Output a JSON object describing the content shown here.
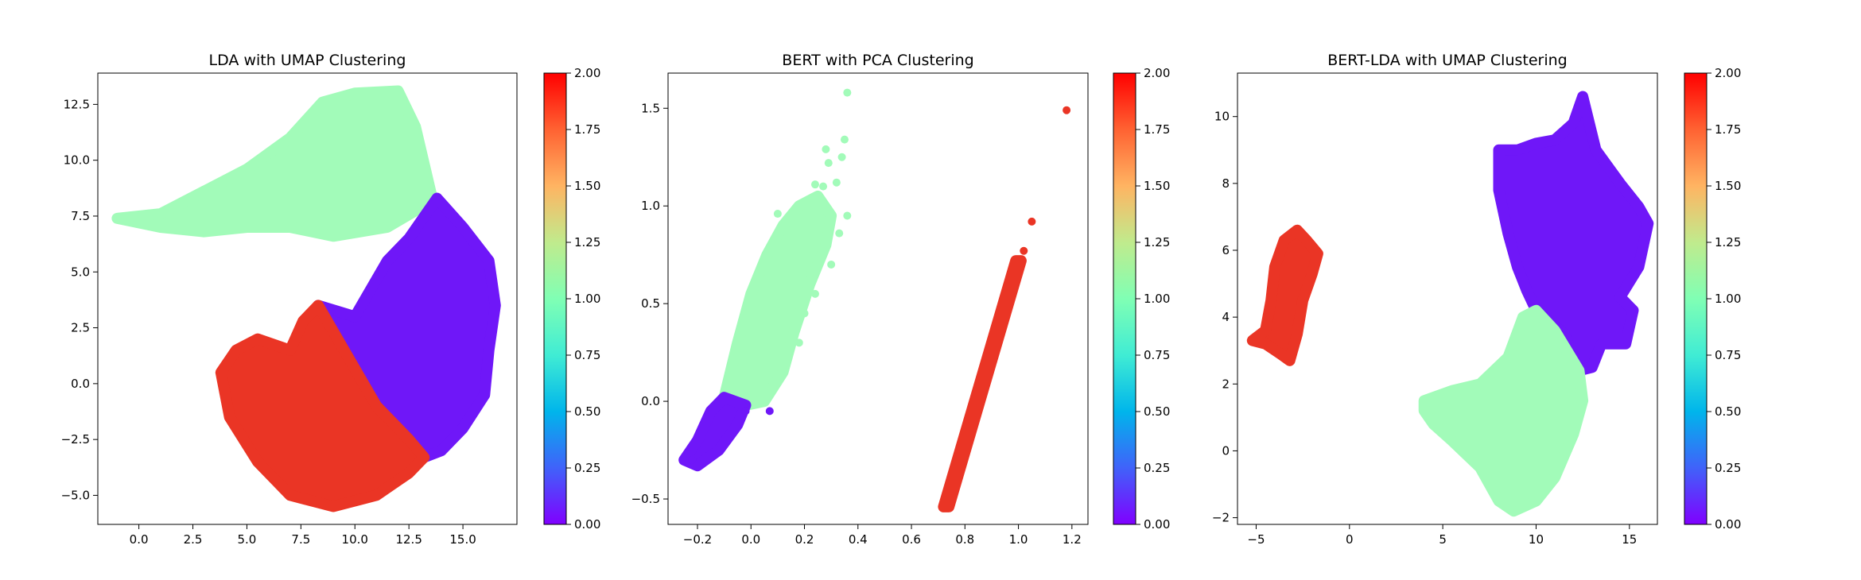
{
  "chart_data": [
    {
      "type": "scatter",
      "title": "LDA with UMAP Clustering",
      "xlabel": "",
      "ylabel": "",
      "xlim": [
        -1.9,
        17.5
      ],
      "ylim": [
        -6.3,
        13.9
      ],
      "xticks": [
        0.0,
        2.5,
        5.0,
        7.5,
        10.0,
        12.5,
        15.0
      ],
      "xtick_labels": [
        "0.0",
        "2.5",
        "5.0",
        "7.5",
        "10.0",
        "12.5",
        "15.0"
      ],
      "yticks": [
        -5.0,
        -2.5,
        0.0,
        2.5,
        5.0,
        7.5,
        10.0,
        12.5
      ],
      "ytick_labels": [
        "−5.0",
        "−2.5",
        "0.0",
        "2.5",
        "5.0",
        "7.5",
        "10.0",
        "12.5"
      ],
      "clusters": [
        {
          "cluster": 1,
          "color": "#a2fbb9",
          "region": [
            [
              -1.0,
              7.4
            ],
            [
              1.0,
              7.6
            ],
            [
              3.0,
              8.6
            ],
            [
              5.0,
              9.6
            ],
            [
              7.0,
              11.0
            ],
            [
              8.5,
              12.6
            ],
            [
              10.0,
              13.0
            ],
            [
              12.0,
              13.1
            ],
            [
              12.8,
              11.5
            ],
            [
              13.6,
              8.2
            ],
            [
              11.5,
              7.0
            ],
            [
              9.0,
              6.6
            ],
            [
              7.0,
              7.0
            ],
            [
              5.0,
              7.0
            ],
            [
              3.0,
              6.8
            ],
            [
              1.0,
              7.0
            ]
          ]
        },
        {
          "cluster": 0,
          "color": "#6f17f8",
          "region": [
            [
              8.3,
              3.5
            ],
            [
              10.0,
              3.0
            ],
            [
              11.5,
              5.5
            ],
            [
              12.5,
              6.5
            ],
            [
              13.8,
              8.3
            ],
            [
              15.0,
              7.0
            ],
            [
              16.2,
              5.5
            ],
            [
              16.5,
              3.5
            ],
            [
              16.2,
              1.5
            ],
            [
              16.0,
              -0.5
            ],
            [
              15.0,
              -2.0
            ],
            [
              14.0,
              -3.0
            ],
            [
              13.2,
              -3.3
            ],
            [
              12.5,
              -2.5
            ],
            [
              11.0,
              -1.0
            ],
            [
              9.5,
              1.5
            ]
          ]
        },
        {
          "cluster": 2,
          "color": "#ea3525",
          "region": [
            [
              8.3,
              3.5
            ],
            [
              7.6,
              2.8
            ],
            [
              7.0,
              1.5
            ],
            [
              5.5,
              2.0
            ],
            [
              4.5,
              1.5
            ],
            [
              3.8,
              0.5
            ],
            [
              4.2,
              -1.5
            ],
            [
              5.5,
              -3.5
            ],
            [
              7.0,
              -5.0
            ],
            [
              9.0,
              -5.5
            ],
            [
              11.0,
              -5.0
            ],
            [
              12.5,
              -4.0
            ],
            [
              13.2,
              -3.3
            ],
            [
              12.5,
              -2.5
            ],
            [
              11.0,
              -1.0
            ],
            [
              9.5,
              1.5
            ]
          ]
        }
      ],
      "colorbar": {
        "min": 0.0,
        "max": 2.0,
        "ticks": [
          "0.00",
          "0.25",
          "0.50",
          "0.75",
          "1.00",
          "1.25",
          "1.50",
          "1.75",
          "2.00"
        ]
      }
    },
    {
      "type": "scatter",
      "title": "BERT with PCA Clustering",
      "xlabel": "",
      "ylabel": "",
      "xlim": [
        -0.31,
        1.26
      ],
      "ylim": [
        -0.63,
        1.68
      ],
      "xticks": [
        -0.2,
        0.0,
        0.2,
        0.4,
        0.6,
        0.8,
        1.0,
        1.2
      ],
      "xtick_labels": [
        "−0.2",
        "0.0",
        "0.2",
        "0.4",
        "0.6",
        "0.8",
        "1.0",
        "1.2"
      ],
      "yticks": [
        -0.5,
        0.0,
        0.5,
        1.0,
        1.5
      ],
      "ytick_labels": [
        "−0.5",
        "0.0",
        "0.5",
        "1.0",
        "1.5"
      ],
      "clusters": [
        {
          "cluster": 1,
          "color": "#a2fbb9",
          "region": [
            [
              -0.1,
              0.02
            ],
            [
              -0.05,
              0.3
            ],
            [
              0.0,
              0.55
            ],
            [
              0.06,
              0.75
            ],
            [
              0.12,
              0.9
            ],
            [
              0.18,
              1.0
            ],
            [
              0.25,
              1.05
            ],
            [
              0.3,
              0.95
            ],
            [
              0.28,
              0.8
            ],
            [
              0.22,
              0.6
            ],
            [
              0.16,
              0.35
            ],
            [
              0.12,
              0.15
            ],
            [
              0.05,
              0.0
            ],
            [
              -0.02,
              -0.02
            ]
          ]
        },
        {
          "cluster": 0,
          "color": "#6f17f8",
          "region": [
            [
              -0.25,
              -0.3
            ],
            [
              -0.2,
              -0.2
            ],
            [
              -0.15,
              -0.05
            ],
            [
              -0.1,
              0.02
            ],
            [
              -0.02,
              -0.02
            ],
            [
              -0.05,
              -0.12
            ],
            [
              -0.12,
              -0.25
            ],
            [
              -0.2,
              -0.33
            ]
          ]
        },
        {
          "cluster": 2,
          "color": "#ea3525",
          "region": [
            [
              0.72,
              -0.54
            ],
            [
              0.74,
              -0.54
            ],
            [
              1.01,
              0.72
            ],
            [
              0.99,
              0.72
            ]
          ]
        }
      ],
      "points": [
        {
          "cluster": 1,
          "x": 0.36,
          "y": 1.58
        },
        {
          "cluster": 1,
          "x": 0.35,
          "y": 1.34
        },
        {
          "cluster": 1,
          "x": 0.34,
          "y": 1.25
        },
        {
          "cluster": 1,
          "x": 0.28,
          "y": 1.29
        },
        {
          "cluster": 1,
          "x": 0.29,
          "y": 1.22
        },
        {
          "cluster": 1,
          "x": 0.32,
          "y": 1.12
        },
        {
          "cluster": 1,
          "x": 0.24,
          "y": 1.11
        },
        {
          "cluster": 1,
          "x": 0.27,
          "y": 1.1
        },
        {
          "cluster": 1,
          "x": 0.33,
          "y": 0.86
        },
        {
          "cluster": 1,
          "x": 0.36,
          "y": 0.95
        },
        {
          "cluster": 1,
          "x": 0.1,
          "y": 0.96
        },
        {
          "cluster": 1,
          "x": 0.3,
          "y": 0.7
        },
        {
          "cluster": 1,
          "x": 0.22,
          "y": 0.65
        },
        {
          "cluster": 1,
          "x": 0.24,
          "y": 0.55
        },
        {
          "cluster": 1,
          "x": 0.2,
          "y": 0.45
        },
        {
          "cluster": 1,
          "x": 0.18,
          "y": 0.3
        },
        {
          "cluster": 1,
          "x": 0.14,
          "y": 0.22
        },
        {
          "cluster": 1,
          "x": 0.08,
          "y": 0.1
        },
        {
          "cluster": 0,
          "x": 0.07,
          "y": -0.05
        },
        {
          "cluster": 0,
          "x": -0.02,
          "y": -0.05
        },
        {
          "cluster": 0,
          "x": -0.22,
          "y": -0.3
        },
        {
          "cluster": 2,
          "x": 1.18,
          "y": 1.49
        },
        {
          "cluster": 2,
          "x": 1.05,
          "y": 0.92
        },
        {
          "cluster": 2,
          "x": 1.02,
          "y": 0.77
        }
      ],
      "colorbar": {
        "min": 0.0,
        "max": 2.0,
        "ticks": [
          "0.00",
          "0.25",
          "0.50",
          "0.75",
          "1.00",
          "1.25",
          "1.50",
          "1.75",
          "2.00"
        ]
      }
    },
    {
      "type": "scatter",
      "title": "BERT-LDA with UMAP Clustering",
      "xlabel": "",
      "ylabel": "",
      "xlim": [
        -6.0,
        16.5
      ],
      "ylim": [
        -2.2,
        11.3
      ],
      "xticks": [
        -5,
        0,
        5,
        10,
        15
      ],
      "xtick_labels": [
        "−5",
        "0",
        "5",
        "10",
        "15"
      ],
      "yticks": [
        -2,
        0,
        2,
        4,
        6,
        8,
        10
      ],
      "ytick_labels": [
        "−2",
        "0",
        "2",
        "4",
        "6",
        "8",
        "10"
      ],
      "clusters": [
        {
          "cluster": 2,
          "color": "#ea3525",
          "region": [
            [
              -5.2,
              3.3
            ],
            [
              -4.5,
              3.6
            ],
            [
              -4.2,
              4.5
            ],
            [
              -4.0,
              5.5
            ],
            [
              -3.5,
              6.3
            ],
            [
              -2.8,
              6.6
            ],
            [
              -2.3,
              6.3
            ],
            [
              -1.7,
              5.9
            ],
            [
              -2.0,
              5.3
            ],
            [
              -2.5,
              4.5
            ],
            [
              -2.8,
              3.5
            ],
            [
              -3.2,
              2.7
            ],
            [
              -3.7,
              2.9
            ],
            [
              -4.5,
              3.2
            ]
          ]
        },
        {
          "cluster": 0,
          "color": "#6f17f8",
          "region": [
            [
              8.0,
              9.0
            ],
            [
              9.0,
              9.0
            ],
            [
              10.0,
              9.2
            ],
            [
              11.0,
              9.3
            ],
            [
              12.0,
              9.8
            ],
            [
              12.5,
              10.6
            ],
            [
              13.2,
              9.0
            ],
            [
              14.5,
              8.0
            ],
            [
              15.5,
              7.3
            ],
            [
              16.0,
              6.8
            ],
            [
              15.5,
              5.5
            ],
            [
              14.5,
              4.6
            ],
            [
              15.2,
              4.2
            ],
            [
              14.8,
              3.2
            ],
            [
              13.5,
              3.2
            ],
            [
              13.0,
              2.5
            ],
            [
              12.3,
              2.4
            ],
            [
              11.5,
              3.5
            ],
            [
              10.0,
              4.2
            ],
            [
              9.5,
              4.8
            ],
            [
              9.0,
              5.5
            ],
            [
              8.5,
              6.5
            ],
            [
              8.0,
              7.8
            ]
          ]
        },
        {
          "cluster": 1,
          "color": "#a2fbb9",
          "region": [
            [
              4.0,
              1.5
            ],
            [
              5.5,
              1.8
            ],
            [
              7.0,
              2.0
            ],
            [
              8.5,
              2.8
            ],
            [
              9.3,
              4.0
            ],
            [
              10.0,
              4.2
            ],
            [
              11.0,
              3.6
            ],
            [
              12.3,
              2.4
            ],
            [
              12.5,
              1.5
            ],
            [
              12.0,
              0.5
            ],
            [
              11.0,
              -0.8
            ],
            [
              10.0,
              -1.5
            ],
            [
              8.8,
              -1.8
            ],
            [
              8.0,
              -1.5
            ],
            [
              7.0,
              -0.5
            ],
            [
              5.5,
              0.3
            ],
            [
              4.5,
              0.8
            ],
            [
              4.0,
              1.2
            ]
          ]
        }
      ],
      "colorbar": {
        "min": 0.0,
        "max": 2.0,
        "ticks": [
          "0.00",
          "0.25",
          "0.50",
          "0.75",
          "1.00",
          "1.25",
          "1.50",
          "1.75",
          "2.00"
        ]
      }
    }
  ]
}
